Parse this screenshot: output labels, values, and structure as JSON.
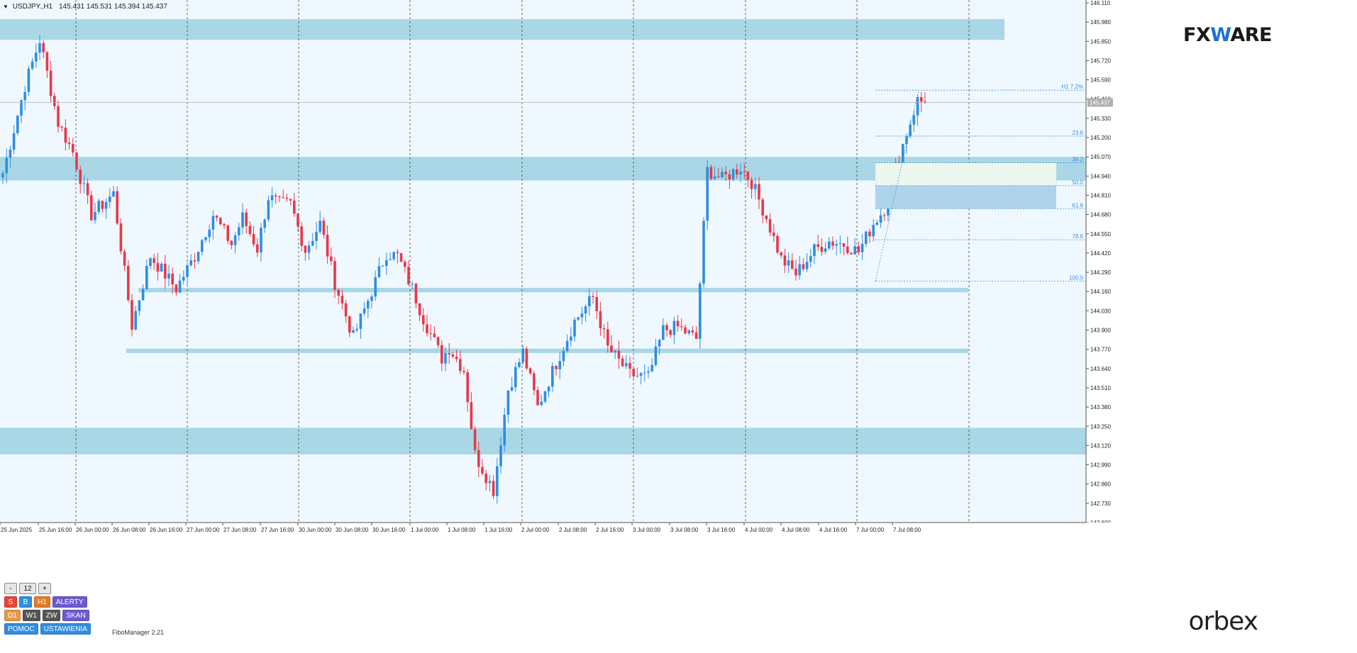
{
  "symbol": {
    "name": "USDJPY.,H1",
    "ohlc": "145.431 145.531 145.394 145.437"
  },
  "logos": {
    "top_prefix": "FX",
    "top_w": "W",
    "top_suffix": "ARE",
    "bottom": "orbex"
  },
  "fibo_manager_label": "FiboManager 2.21",
  "panel": {
    "row1": [
      "-",
      "12",
      "+"
    ],
    "row2": [
      "S",
      "B",
      "H1",
      "ALERTY"
    ],
    "row3": [
      "D1",
      "W1",
      "ZW",
      "SKAN"
    ],
    "row4": [
      "POMOC",
      "USTAWIENIA"
    ]
  },
  "colors": {
    "background": "#f0f8ff",
    "bull": "#2f8ee0",
    "bear": "#e8384a",
    "zone": "#a9d7e6",
    "fib": "#3a8fd8"
  },
  "chart_data": {
    "type": "candlestick",
    "timeframe": "H1",
    "ylim": [
      142.6,
      146.11
    ],
    "current_price": 145.437,
    "current_price_label": "145.437",
    "y_ticks": [
      "146.110",
      "145.980",
      "145.850",
      "145.720",
      "145.590",
      "145.460",
      "145.330",
      "145.200",
      "145.070",
      "144.940",
      "144.810",
      "144.680",
      "144.550",
      "144.420",
      "144.290",
      "144.160",
      "144.030",
      "143.900",
      "143.770",
      "143.640",
      "143.510",
      "143.380",
      "143.250",
      "143.120",
      "142.990",
      "142.860",
      "142.730",
      "142.600"
    ],
    "x_ticks": [
      "25 Jun 2025",
      "25 Jun 16:00",
      "26 Jun 00:00",
      "26 Jun 08:00",
      "26 Jun 16:00",
      "27 Jun 00:00",
      "27 Jun 08:00",
      "27 Jun 16:00",
      "30 Jun 00:00",
      "30 Jun 08:00",
      "30 Jun 16:00",
      "1 Jul 00:00",
      "1 Jul 08:00",
      "1 Jul 16:00",
      "2 Jul 00:00",
      "2 Jul 08:00",
      "2 Jul 16:00",
      "3 Jul 00:00",
      "3 Jul 08:00",
      "3 Jul 16:00",
      "4 Jul 00:00",
      "4 Jul 08:00",
      "4 Jul 16:00",
      "7 Jul 00:00",
      "7 Jul 08:00"
    ],
    "keypoints": [
      [
        0,
        144.96
      ],
      [
        6,
        145.55
      ],
      [
        10,
        145.86
      ],
      [
        15,
        145.3
      ],
      [
        19,
        145.1
      ],
      [
        24,
        144.68
      ],
      [
        30,
        144.82
      ],
      [
        35,
        143.93
      ],
      [
        40,
        144.4
      ],
      [
        47,
        144.18
      ],
      [
        52,
        144.4
      ],
      [
        57,
        144.68
      ],
      [
        62,
        144.48
      ],
      [
        65,
        144.66
      ],
      [
        69,
        144.45
      ],
      [
        72,
        144.8
      ],
      [
        75,
        144.75
      ],
      [
        78,
        144.75
      ],
      [
        82,
        144.44
      ],
      [
        86,
        144.62
      ],
      [
        90,
        144.22
      ],
      [
        95,
        143.85
      ],
      [
        99,
        144.1
      ],
      [
        104,
        144.42
      ],
      [
        107,
        144.4
      ],
      [
        111,
        144.18
      ],
      [
        114,
        143.98
      ],
      [
        119,
        143.71
      ],
      [
        121,
        143.78
      ],
      [
        125,
        143.63
      ],
      [
        128,
        143.06
      ],
      [
        133,
        142.82
      ],
      [
        137,
        143.5
      ],
      [
        141,
        143.75
      ],
      [
        145,
        143.38
      ],
      [
        149,
        143.62
      ],
      [
        155,
        143.96
      ],
      [
        160,
        144.12
      ],
      [
        164,
        143.78
      ],
      [
        170,
        143.6
      ],
      [
        175,
        143.58
      ],
      [
        179,
        143.9
      ],
      [
        183,
        143.92
      ],
      [
        188,
        143.84
      ],
      [
        191,
        144.98
      ],
      [
        195,
        144.92
      ],
      [
        200,
        145.0
      ],
      [
        203,
        144.9
      ],
      [
        207,
        144.66
      ],
      [
        211,
        144.38
      ],
      [
        215,
        144.28
      ],
      [
        220,
        144.44
      ],
      [
        224,
        144.5
      ],
      [
        228,
        144.48
      ],
      [
        232,
        144.43
      ],
      [
        236,
        144.62
      ],
      [
        239,
        144.72
      ],
      [
        242,
        145.0
      ],
      [
        245,
        145.23
      ],
      [
        248,
        145.45
      ],
      [
        250,
        145.437
      ]
    ],
    "zones": [
      {
        "low": 145.86,
        "high": 146.0,
        "extends": "to-logo"
      },
      {
        "low": 144.91,
        "high": 145.07,
        "extends": "full"
      },
      {
        "low": 144.155,
        "high": 144.185,
        "extends": "partial"
      },
      {
        "low": 143.745,
        "high": 143.775,
        "extends": "partial"
      },
      {
        "low": 143.06,
        "high": 143.24,
        "extends": "full"
      }
    ],
    "fibonacci": {
      "low": 144.23,
      "high": 145.52,
      "levels": [
        {
          "label": "100.0",
          "value": 144.23
        },
        {
          "label": "78.6",
          "value": 144.51
        },
        {
          "label": "61.8",
          "value": 144.72
        },
        {
          "label": "50.0",
          "value": 144.875
        },
        {
          "label": "38.2",
          "value": 145.03
        },
        {
          "label": "23.6",
          "value": 145.21
        },
        {
          "label": "H1 7.2%",
          "value": 145.52
        }
      ]
    },
    "grid": "dashed-vertical"
  }
}
